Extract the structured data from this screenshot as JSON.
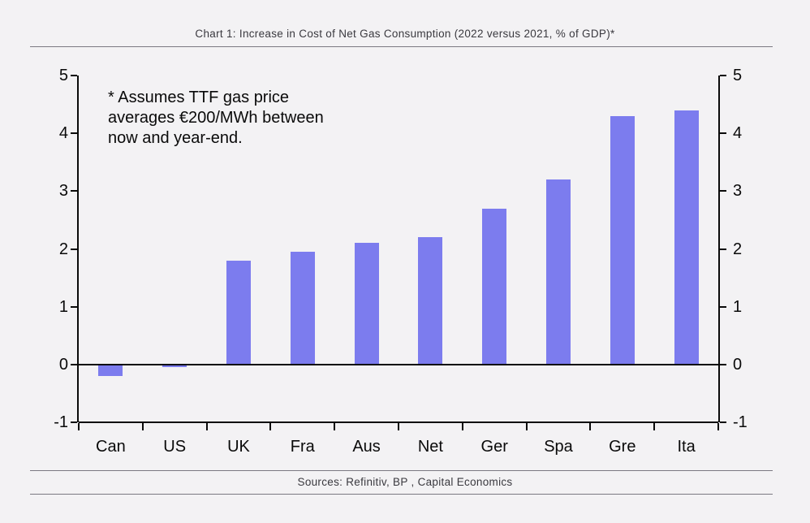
{
  "page": {
    "background": "#f3f2f4",
    "rule_color": "#7b7982"
  },
  "header": {
    "title": "Chart 1: Increase in Cost of Net Gas Consumption (2022 versus 2021, % of GDP)*"
  },
  "footer": {
    "sources": "Sources: Refinitiv, BP , Capital Economics"
  },
  "chart_data": {
    "type": "bar",
    "title": "Chart 1: Increase in Cost of Net Gas Consumption (2022 versus 2021, % of GDP)*",
    "categories": [
      "Can",
      "US",
      "UK",
      "Fra",
      "Aus",
      "Net",
      "Ger",
      "Spa",
      "Gre",
      "Ita"
    ],
    "values": [
      -0.2,
      -0.05,
      1.8,
      1.95,
      2.1,
      2.2,
      2.7,
      3.2,
      4.3,
      4.4
    ],
    "annotation": "* Assumes TTF gas price\naverages €200/MWh between\nnow and year-end.",
    "xlabel": "",
    "ylabel": "",
    "ylim": [
      -1,
      5
    ],
    "yticks": [
      5,
      4,
      3,
      2,
      1,
      0,
      -1
    ],
    "grid": false,
    "legend_position": "none",
    "mirrored_y_axes": true,
    "bar_color": "#7c7cee"
  }
}
